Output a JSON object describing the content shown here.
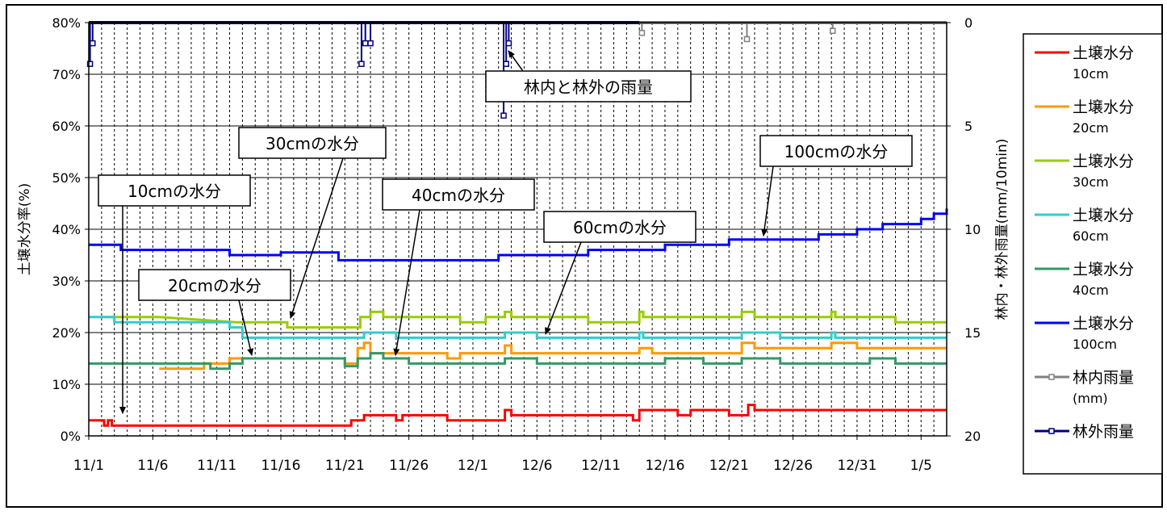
{
  "chart_data": {
    "type": "line",
    "x_start": "11/1",
    "x_end": "1/7",
    "x_tick_labels": [
      "11/1",
      "11/6",
      "11/11",
      "11/16",
      "11/21",
      "11/26",
      "12/1",
      "12/6",
      "12/11",
      "12/16",
      "12/21",
      "12/26",
      "12/31",
      "1/5"
    ],
    "ylabel_left": "土壌水分率(%)",
    "ylabel_right": "林内・林外雨量(mm/10min)",
    "ylim_left": [
      0,
      80
    ],
    "ylim_right": [
      20,
      0
    ],
    "y_tick_labels_left": [
      "0%",
      "10%",
      "20%",
      "30%",
      "40%",
      "50%",
      "60%",
      "70%",
      "80%"
    ],
    "y_tick_labels_right": [
      "0",
      "5",
      "10",
      "15",
      "20"
    ],
    "grid": "vertical dashed daily, horizontal solid",
    "legend_placement": "right",
    "legend": [
      {
        "label1": "土壌水分",
        "label2": "10cm",
        "color": "#ff0000",
        "style": "line"
      },
      {
        "label1": "土壌水分",
        "label2": "20cm",
        "color": "#ff9900",
        "style": "line"
      },
      {
        "label1": "土壌水分",
        "label2": "30cm",
        "color": "#99cc00",
        "style": "line"
      },
      {
        "label1": "土壌水分",
        "label2": "60cm",
        "color": "#33cccc",
        "style": "line"
      },
      {
        "label1": "土壌水分",
        "label2": "40cm",
        "color": "#339966",
        "style": "line"
      },
      {
        "label1": "土壌水分",
        "label2": "100cm",
        "color": "#0000ff",
        "style": "line"
      },
      {
        "label1": "林内雨量",
        "label2": "(mm)",
        "color": "#808080",
        "style": "marker"
      },
      {
        "label1": "林外雨量",
        "label2": "",
        "color": "#000080",
        "style": "marker"
      }
    ],
    "annotations": [
      {
        "text": "10cmの水分"
      },
      {
        "text": "20cmの水分"
      },
      {
        "text": "30cmの水分"
      },
      {
        "text": "40cmの水分"
      },
      {
        "text": "60cmの水分"
      },
      {
        "text": "100cmの水分"
      },
      {
        "text": "林内と林外の雨量"
      }
    ],
    "series": [
      {
        "name": "土壌水分10cm",
        "color": "#ff0000",
        "axis": "left",
        "points": [
          [
            0,
            3
          ],
          [
            1.2,
            3
          ],
          [
            1.2,
            2
          ],
          [
            1.5,
            2
          ],
          [
            1.5,
            3
          ],
          [
            1.8,
            3
          ],
          [
            1.8,
            2
          ],
          [
            20.5,
            2
          ],
          [
            20.5,
            3
          ],
          [
            21.5,
            3
          ],
          [
            21.5,
            4
          ],
          [
            24,
            4
          ],
          [
            24,
            3
          ],
          [
            24.5,
            3
          ],
          [
            24.5,
            4
          ],
          [
            28,
            4
          ],
          [
            28,
            3
          ],
          [
            32.5,
            3
          ],
          [
            32.5,
            5
          ],
          [
            33,
            5
          ],
          [
            33,
            4
          ],
          [
            42.5,
            4
          ],
          [
            42.5,
            3
          ],
          [
            43,
            3
          ],
          [
            43,
            5
          ],
          [
            46,
            5
          ],
          [
            46,
            4
          ],
          [
            47,
            4
          ],
          [
            47,
            5
          ],
          [
            50,
            5
          ],
          [
            50,
            4
          ],
          [
            51.5,
            4
          ],
          [
            51.5,
            6
          ],
          [
            52,
            6
          ],
          [
            52,
            5
          ],
          [
            67,
            5
          ]
        ]
      },
      {
        "name": "土壌水分20cm",
        "color": "#ff9900",
        "axis": "left",
        "points": [
          [
            5.5,
            13
          ],
          [
            9,
            13
          ],
          [
            9,
            14
          ],
          [
            11,
            14
          ],
          [
            11,
            15
          ],
          [
            20,
            15
          ],
          [
            20,
            14
          ],
          [
            21,
            14
          ],
          [
            21,
            17
          ],
          [
            21.5,
            17
          ],
          [
            21.5,
            18
          ],
          [
            22,
            18
          ],
          [
            22,
            16
          ],
          [
            28,
            16
          ],
          [
            28,
            15
          ],
          [
            29,
            15
          ],
          [
            29,
            16
          ],
          [
            32.5,
            16
          ],
          [
            32.5,
            17.5
          ],
          [
            33,
            17.5
          ],
          [
            33,
            16
          ],
          [
            43,
            16
          ],
          [
            43,
            17
          ],
          [
            44,
            17
          ],
          [
            44,
            16
          ],
          [
            51,
            16
          ],
          [
            51,
            18
          ],
          [
            52,
            18
          ],
          [
            52,
            17
          ],
          [
            58,
            17
          ],
          [
            58,
            18
          ],
          [
            60,
            18
          ],
          [
            60,
            17
          ],
          [
            67,
            17
          ]
        ]
      },
      {
        "name": "土壌水分30cm",
        "color": "#99cc00",
        "axis": "left",
        "points": [
          [
            1,
            23
          ],
          [
            5.5,
            23
          ],
          [
            11.5,
            22
          ],
          [
            15.5,
            22
          ],
          [
            15.5,
            21
          ],
          [
            20.5,
            21
          ],
          [
            21.2,
            21
          ],
          [
            21.2,
            23
          ],
          [
            22,
            23
          ],
          [
            22,
            24
          ],
          [
            23,
            24
          ],
          [
            23,
            23
          ],
          [
            29,
            23
          ],
          [
            29,
            22
          ],
          [
            31,
            22
          ],
          [
            31,
            23
          ],
          [
            32.5,
            23
          ],
          [
            32.5,
            24
          ],
          [
            33,
            24
          ],
          [
            33,
            23
          ],
          [
            39,
            23
          ],
          [
            39,
            22
          ],
          [
            43,
            22
          ],
          [
            43,
            24
          ],
          [
            43.3,
            24
          ],
          [
            43.3,
            23
          ],
          [
            51,
            23
          ],
          [
            51,
            24
          ],
          [
            52,
            24
          ],
          [
            52,
            23
          ],
          [
            58,
            23
          ],
          [
            58,
            24
          ],
          [
            58.3,
            24
          ],
          [
            58.3,
            23
          ],
          [
            63,
            23
          ],
          [
            63,
            22
          ],
          [
            67,
            22
          ]
        ]
      },
      {
        "name": "土壌水分60cm",
        "color": "#33cccc",
        "axis": "left",
        "points": [
          [
            0,
            23
          ],
          [
            2,
            23
          ],
          [
            2,
            22
          ],
          [
            11,
            22
          ],
          [
            11,
            21
          ],
          [
            12,
            21
          ],
          [
            12,
            19
          ],
          [
            21.5,
            19
          ],
          [
            21.5,
            20
          ],
          [
            24,
            20
          ],
          [
            24,
            19
          ],
          [
            32.5,
            19
          ],
          [
            32.5,
            20
          ],
          [
            35,
            20
          ],
          [
            35,
            19
          ],
          [
            43,
            19
          ],
          [
            43,
            20
          ],
          [
            43.3,
            20
          ],
          [
            43.3,
            19
          ],
          [
            51,
            19
          ],
          [
            51,
            20
          ],
          [
            54,
            20
          ],
          [
            54,
            19
          ],
          [
            58,
            19
          ],
          [
            58,
            20
          ],
          [
            58.3,
            20
          ],
          [
            58.3,
            19
          ],
          [
            67,
            19
          ]
        ]
      },
      {
        "name": "土壌水分40cm",
        "color": "#339966",
        "axis": "left",
        "points": [
          [
            0,
            14
          ],
          [
            9.5,
            14
          ],
          [
            9.5,
            13
          ],
          [
            11,
            13
          ],
          [
            11,
            14
          ],
          [
            12,
            14
          ],
          [
            12,
            15
          ],
          [
            20,
            15
          ],
          [
            20,
            13.5
          ],
          [
            21,
            13.5
          ],
          [
            21,
            15
          ],
          [
            22,
            15
          ],
          [
            22,
            16
          ],
          [
            23,
            16
          ],
          [
            23,
            15
          ],
          [
            25,
            15
          ],
          [
            25,
            14
          ],
          [
            32.5,
            14
          ],
          [
            32.5,
            15
          ],
          [
            35,
            15
          ],
          [
            35,
            14
          ],
          [
            45,
            14
          ],
          [
            45,
            15
          ],
          [
            48,
            15
          ],
          [
            48,
            14
          ],
          [
            51,
            14
          ],
          [
            51,
            15
          ],
          [
            54,
            15
          ],
          [
            54,
            14
          ],
          [
            61,
            14
          ],
          [
            61,
            15
          ],
          [
            63,
            15
          ],
          [
            63,
            14
          ],
          [
            67,
            14
          ]
        ]
      },
      {
        "name": "土壌水分100cm",
        "color": "#0000ff",
        "axis": "left",
        "points": [
          [
            0,
            37
          ],
          [
            2.5,
            37
          ],
          [
            2.5,
            36
          ],
          [
            11,
            36
          ],
          [
            11,
            35
          ],
          [
            15,
            35
          ],
          [
            15,
            35.5
          ],
          [
            19.5,
            35.5
          ],
          [
            19.5,
            34
          ],
          [
            32,
            34
          ],
          [
            32,
            35
          ],
          [
            39,
            35
          ],
          [
            39,
            36
          ],
          [
            45,
            36
          ],
          [
            45,
            37
          ],
          [
            50,
            37
          ],
          [
            50,
            38
          ],
          [
            57,
            38
          ],
          [
            57,
            39
          ],
          [
            60,
            39
          ],
          [
            60,
            40
          ],
          [
            62,
            40
          ],
          [
            62,
            41
          ],
          [
            65,
            41
          ],
          [
            65,
            42
          ],
          [
            66,
            42
          ],
          [
            66,
            43
          ],
          [
            67,
            43
          ],
          [
            67,
            44
          ],
          [
            67,
            44
          ]
        ]
      },
      {
        "name": "林内雨量",
        "color": "#808080",
        "axis": "right",
        "markers": true,
        "points": [
          [
            43,
            0
          ],
          [
            67,
            0
          ]
        ]
      },
      {
        "name": "林外雨量",
        "color": "#000080",
        "axis": "right",
        "markers": true,
        "points": [
          [
            0,
            0
          ],
          [
            43,
            0
          ]
        ]
      }
    ],
    "rain_spikes": [
      {
        "series": "林外雨量",
        "day": 0.1,
        "value": 2
      },
      {
        "series": "林外雨量",
        "day": 0.3,
        "value": 1
      },
      {
        "series": "林外雨量",
        "day": 21.3,
        "value": 2
      },
      {
        "series": "林外雨量",
        "day": 21.6,
        "value": 1
      },
      {
        "series": "林外雨量",
        "day": 22.0,
        "value": 1
      },
      {
        "series": "林外雨量",
        "day": 32.4,
        "value": 4.5
      },
      {
        "series": "林外雨量",
        "day": 32.6,
        "value": 2
      },
      {
        "series": "林外雨量",
        "day": 32.8,
        "value": 1
      },
      {
        "series": "林内雨量",
        "day": 43.2,
        "value": 0.5
      },
      {
        "series": "林内雨量",
        "day": 51.4,
        "value": 0.8
      },
      {
        "series": "林内雨量",
        "day": 58.1,
        "value": 0.4
      }
    ]
  }
}
